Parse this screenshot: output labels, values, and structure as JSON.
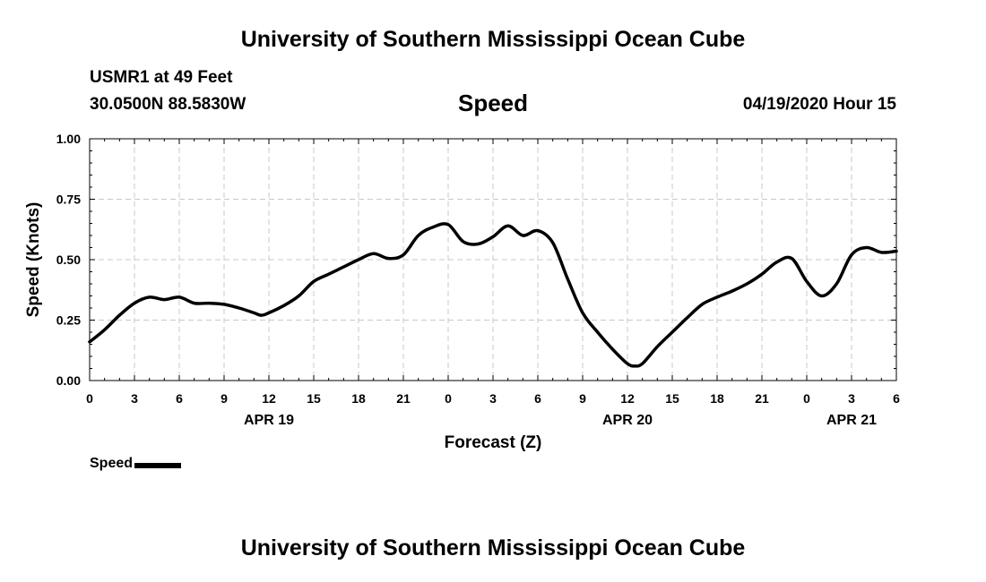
{
  "header": {
    "title_top": "University of Southern Mississippi Ocean Cube",
    "station": "USMR1 at 49 Feet",
    "coords": "30.0500N 88.5830W",
    "issued": "04/19/2020 Hour 15",
    "title_bottom": "University of Southern Mississippi Ocean Cube"
  },
  "chart_data": {
    "type": "line",
    "title": "Speed",
    "xlabel": "Forecast (Z)",
    "ylabel": "Speed (Knots)",
    "ylim": [
      0,
      1
    ],
    "yticks": [
      "0.00",
      "0.25",
      "0.50",
      "0.75",
      "1.00"
    ],
    "xlim": [
      0,
      54
    ],
    "xticks": [
      "0",
      "3",
      "6",
      "9",
      "12",
      "15",
      "18",
      "21",
      "0",
      "3",
      "6",
      "9",
      "12",
      "15",
      "18",
      "21",
      "0",
      "3",
      "6"
    ],
    "date_labels": [
      {
        "label": "APR 19",
        "x": 12
      },
      {
        "label": "APR 20",
        "x": 36
      },
      {
        "label": "APR 21",
        "x": 51
      }
    ],
    "grid": true,
    "legend": "bottom-left",
    "series": [
      {
        "name": "Speed",
        "color": "#000000",
        "x": [
          0,
          1,
          2,
          3,
          4,
          5,
          6,
          7,
          8,
          9,
          10,
          11,
          11.5,
          12,
          13,
          14,
          15,
          16,
          17,
          18,
          19,
          20,
          21,
          22,
          23,
          24,
          25,
          26,
          27,
          28,
          29,
          30,
          31,
          32,
          33,
          34,
          35,
          36,
          36.5,
          37,
          38,
          39,
          40,
          41,
          42,
          43,
          44,
          45,
          46,
          47,
          48,
          49,
          50,
          51,
          52,
          53,
          54
        ],
        "values": [
          0.16,
          0.21,
          0.27,
          0.32,
          0.345,
          0.335,
          0.345,
          0.32,
          0.32,
          0.315,
          0.3,
          0.28,
          0.27,
          0.28,
          0.31,
          0.35,
          0.41,
          0.44,
          0.47,
          0.5,
          0.525,
          0.505,
          0.52,
          0.6,
          0.635,
          0.645,
          0.575,
          0.565,
          0.595,
          0.64,
          0.6,
          0.62,
          0.57,
          0.42,
          0.28,
          0.2,
          0.13,
          0.07,
          0.06,
          0.07,
          0.14,
          0.2,
          0.26,
          0.315,
          0.345,
          0.37,
          0.4,
          0.44,
          0.49,
          0.505,
          0.41,
          0.35,
          0.4,
          0.52,
          0.55,
          0.53,
          0.535
        ]
      }
    ]
  }
}
